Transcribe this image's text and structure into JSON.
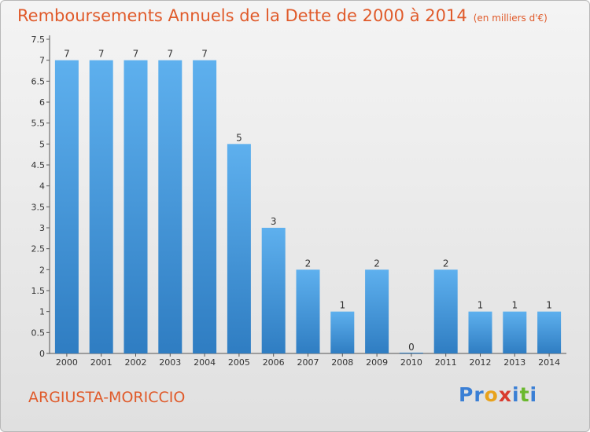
{
  "header": {
    "title": "Remboursements Annuels de la Dette de 2000 à 2014",
    "subtitle": "(en milliers d'€)"
  },
  "footer": {
    "place": "ARGIUSTA-MORICCIO",
    "brand_letters": [
      {
        "ch": "P",
        "color": "#3a7fd5"
      },
      {
        "ch": "r",
        "color": "#3a7fd5"
      },
      {
        "ch": "o",
        "color": "#e8a21c"
      },
      {
        "ch": "x",
        "color": "#d93a2e"
      },
      {
        "ch": "i",
        "color": "#3a7fd5"
      },
      {
        "ch": "t",
        "color": "#6ab82e"
      },
      {
        "ch": "i",
        "color": "#3a7fd5"
      }
    ]
  },
  "colors": {
    "title": "#e05a2a",
    "bar_top": "#5eb0ee",
    "bar_bottom": "#2f7dc2"
  },
  "chart_data": {
    "type": "bar",
    "title": "Remboursements Annuels de la Dette de 2000 à 2014",
    "subtitle": "(en milliers d'€)",
    "categories": [
      "2000",
      "2001",
      "2002",
      "2003",
      "2004",
      "2005",
      "2006",
      "2007",
      "2008",
      "2009",
      "2010",
      "2011",
      "2012",
      "2013",
      "2014"
    ],
    "values": [
      7,
      7,
      7,
      7,
      7,
      5,
      3,
      2,
      1,
      2,
      0,
      2,
      1,
      1,
      1
    ],
    "value_labels": [
      "7",
      "7",
      "7",
      "7",
      "7",
      "5",
      "3",
      "2",
      "1",
      "2",
      "0",
      "2",
      "1",
      "1",
      "1"
    ],
    "yticks": [
      "0",
      "0.5",
      "1",
      "1.5",
      "2",
      "2.5",
      "3",
      "3.5",
      "4",
      "4.5",
      "5",
      "5.5",
      "6",
      "6.5",
      "7",
      "7.5"
    ],
    "ylim": [
      0,
      7.5
    ],
    "grid": false,
    "legend": "none"
  }
}
